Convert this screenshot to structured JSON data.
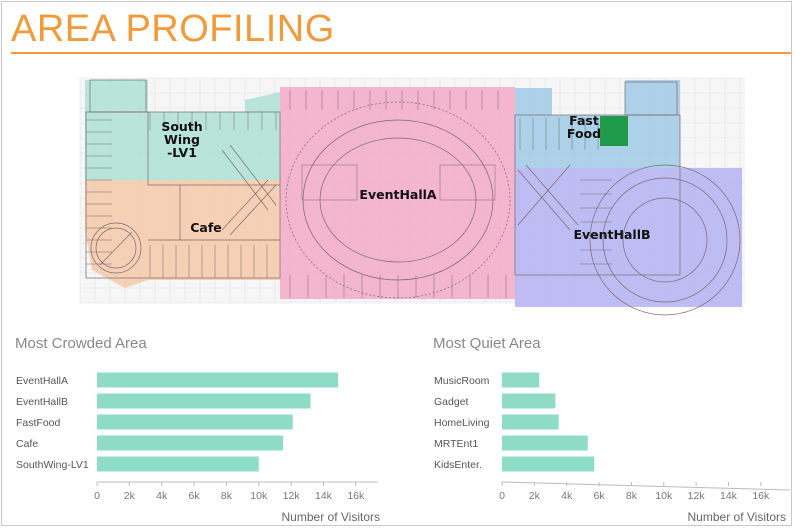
{
  "page": {
    "title": "AREA PROFILING"
  },
  "floorplan": {
    "zones": [
      {
        "name": "SouthWing-LV1",
        "label_lines": [
          "South",
          "Wing",
          "-LV1"
        ],
        "color": "#aee1d5"
      },
      {
        "name": "Cafe",
        "label_lines": [
          "Cafe"
        ],
        "color": "#f5c9a8"
      },
      {
        "name": "EventHallA",
        "label_lines": [
          "EventHallA"
        ],
        "color": "#f3a9c8"
      },
      {
        "name": "FastFood",
        "label_lines": [
          "Fast",
          "Food"
        ],
        "color": "#9fcae6"
      },
      {
        "name": "EventHallB",
        "label_lines": [
          "EventHallB"
        ],
        "color": "#b3b3f2"
      }
    ]
  },
  "chart_data": [
    {
      "type": "bar",
      "orientation": "horizontal",
      "title": "Most Crowded Area",
      "categories": [
        "EventHallA",
        "EventHallB",
        "FastFood",
        "Cafe",
        "SouthWing-LV1"
      ],
      "values": [
        14900,
        13200,
        12100,
        11500,
        10000
      ],
      "xlabel": "Number of Visitors",
      "xlim": [
        0,
        17000
      ],
      "xticks": [
        0,
        2000,
        4000,
        6000,
        8000,
        10000,
        12000,
        14000,
        16000
      ],
      "xtick_labels": [
        "0",
        "2k",
        "4k",
        "6k",
        "8k",
        "10k",
        "12k",
        "14k",
        "16k"
      ],
      "bar_color": "#8fdcc6",
      "grid": false
    },
    {
      "type": "bar",
      "orientation": "horizontal",
      "title": "Most Quiet Area",
      "categories": [
        "MusicRoom",
        "Gadget",
        "HomeLiving",
        "MRTEnt1",
        "KidsEnter."
      ],
      "values": [
        2300,
        3300,
        3500,
        5300,
        5700
      ],
      "xlabel": "Number of Visitors",
      "xlim": [
        0,
        17000
      ],
      "xticks": [
        0,
        2000,
        4000,
        6000,
        8000,
        10000,
        12000,
        14000,
        16000
      ],
      "xtick_labels": [
        "0",
        "2k",
        "4k",
        "6k",
        "8k",
        "10k",
        "12k",
        "14k",
        "16k"
      ],
      "bar_color": "#8fdcc6",
      "grid": false
    }
  ]
}
